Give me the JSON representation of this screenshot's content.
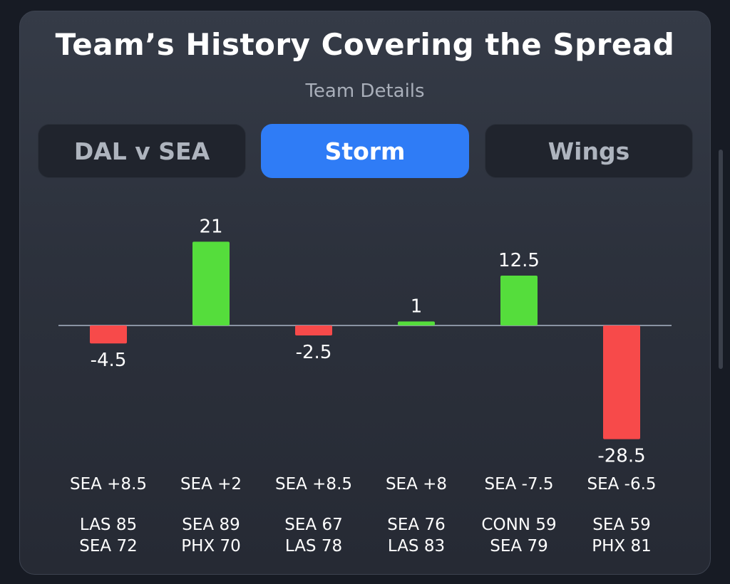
{
  "header": {
    "title": "Team’s History Covering the Spread",
    "subtitle": "Team Details"
  },
  "tabs": [
    {
      "label": "DAL v SEA",
      "active": false
    },
    {
      "label": "Storm",
      "active": true
    },
    {
      "label": "Wings",
      "active": false
    }
  ],
  "colors": {
    "positive": "#55dd3c",
    "negative": "#f74a4a",
    "accent": "#2f7cf6",
    "baseline": "#8a93a3"
  },
  "chart_data": {
    "type": "bar",
    "categories": [
      "SEA +8.5",
      "SEA +2",
      "SEA +8.5",
      "SEA +8",
      "SEA -7.5",
      "SEA -6.5"
    ],
    "values": [
      -4.5,
      21,
      -2.5,
      1,
      12.5,
      -28.5
    ],
    "value_labels": [
      "-4.5",
      "21",
      "-2.5",
      "1",
      "12.5",
      "-28.5"
    ],
    "scores": [
      [
        "LAS 85",
        "SEA 72"
      ],
      [
        "SEA 89",
        "PHX 70"
      ],
      [
        "SEA 67",
        "LAS 78"
      ],
      [
        "SEA 76",
        "LAS 83"
      ],
      [
        "CONN 59",
        "SEA 79"
      ],
      [
        "SEA 59",
        "PHX 81"
      ]
    ],
    "grid": false,
    "legend": "none"
  }
}
